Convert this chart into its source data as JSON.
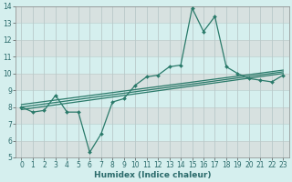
{
  "xlabel": "Humidex (Indice chaleur)",
  "x": [
    0,
    1,
    2,
    3,
    4,
    5,
    6,
    7,
    8,
    9,
    10,
    11,
    12,
    13,
    14,
    15,
    16,
    17,
    18,
    19,
    20,
    21,
    22,
    23
  ],
  "line1": [
    8.0,
    7.7,
    7.8,
    8.7,
    7.7,
    7.7,
    5.3,
    6.4,
    8.3,
    8.5,
    9.3,
    9.8,
    9.9,
    10.4,
    10.5,
    13.9,
    12.5,
    13.4,
    10.4,
    10.0,
    9.7,
    9.6,
    9.5,
    9.9
  ],
  "reg_lower": [
    7.85,
    10.0
  ],
  "reg_mid": [
    8.0,
    10.1
  ],
  "reg_upper": [
    8.15,
    10.2
  ],
  "line_color": "#2a7a6a",
  "bg_color": "#d5efee",
  "grid_major_color": "#c8dede",
  "grid_minor_color": "#dce8e8",
  "ylim": [
    5,
    14
  ],
  "xlim": [
    0,
    23
  ],
  "yticks": [
    5,
    6,
    7,
    8,
    9,
    10,
    11,
    12,
    13,
    14
  ],
  "xticks": [
    0,
    1,
    2,
    3,
    4,
    5,
    6,
    7,
    8,
    9,
    10,
    11,
    12,
    13,
    14,
    15,
    16,
    17,
    18,
    19,
    20,
    21,
    22,
    23
  ],
  "tick_fontsize": 5.5,
  "xlabel_fontsize": 6.5
}
